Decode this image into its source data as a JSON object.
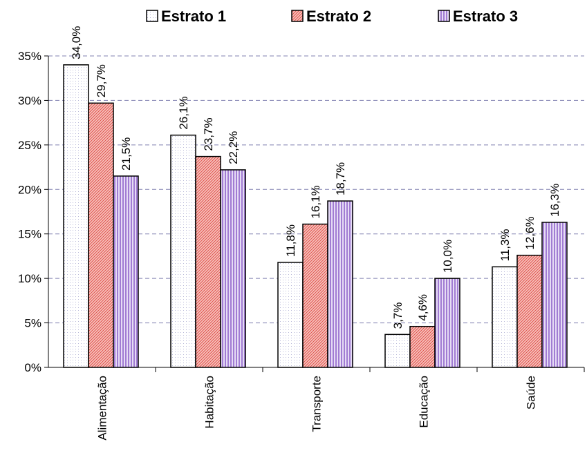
{
  "chart_data": {
    "type": "bar",
    "categories": [
      "Alimentação",
      "Habitação",
      "Transporte",
      "Educação",
      "Saúde"
    ],
    "series": [
      {
        "name": "Estrato 1",
        "color": "#b8b8d8",
        "pattern": "dots",
        "values": [
          34.0,
          26.1,
          11.8,
          3.7,
          11.3
        ],
        "value_labels": [
          "34,0%",
          "26,1%",
          "11,8%",
          "3,7%",
          "11,3%"
        ]
      },
      {
        "name": "Estrato 2",
        "color": "#e0504a",
        "pattern": "diagonal",
        "values": [
          29.7,
          23.7,
          16.1,
          4.6,
          12.6
        ],
        "value_labels": [
          "29,7%",
          "23,7%",
          "16,1%",
          "4,6%",
          "12,6%"
        ]
      },
      {
        "name": "Estrato 3",
        "color": "#8a5cc8",
        "pattern": "vertical",
        "values": [
          21.5,
          22.2,
          18.7,
          10.0,
          16.3
        ],
        "value_labels": [
          "21,5%",
          "22,2%",
          "18,7%",
          "10,0%",
          "16,3%"
        ]
      }
    ],
    "ylim": [
      0,
      35
    ],
    "yticks": [
      {
        "value": 0,
        "label": "0%"
      },
      {
        "value": 5,
        "label": "5%"
      },
      {
        "value": 10,
        "label": "10%"
      },
      {
        "value": 15,
        "label": "15%"
      },
      {
        "value": 20,
        "label": "20%"
      },
      {
        "value": 25,
        "label": "25%"
      },
      {
        "value": 30,
        "label": "30%"
      },
      {
        "value": 35,
        "label": "35%"
      }
    ],
    "grid": true,
    "legend": "top"
  }
}
